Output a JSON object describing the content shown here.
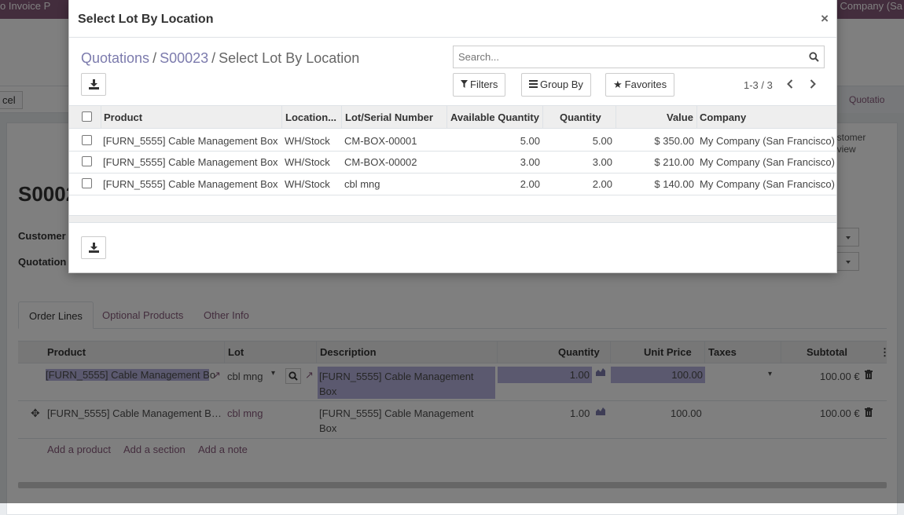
{
  "background": {
    "navbar": {
      "left_text": "o Invoice   P",
      "right_text": "Company (Sa"
    },
    "statusbar": {
      "cancel_label": "cel",
      "quotation_tab": "Quotatio"
    },
    "smart_button": {
      "line1": "ustomer",
      "line2": "eview"
    },
    "record_title": "S0002",
    "fields": {
      "customer_label": "Customer",
      "quotation_label": "Quotation"
    },
    "tabs": [
      "Order Lines",
      "Optional Products",
      "Other Info"
    ],
    "order_lines": {
      "headers": {
        "product": "Product",
        "lot": "Lot",
        "description": "Description",
        "quantity": "Quantity",
        "unit_price": "Unit Price",
        "taxes": "Taxes",
        "subtotal": "Subtotal"
      },
      "rows": [
        {
          "product": "[FURN_5555] Cable Management Bo",
          "lot": "cbl mng",
          "description_line1": "[FURN_5555] Cable Management",
          "description_line2": "Box",
          "quantity": "1.00",
          "unit_price": "100.00",
          "subtotal": "100.00 €"
        },
        {
          "product": "[FURN_5555] Cable Management B…",
          "lot": "cbl mng",
          "description_line1": "[FURN_5555] Cable Management",
          "description_line2": "Box",
          "quantity": "1.00",
          "unit_price": "100.00",
          "subtotal": "100.00 €"
        }
      ],
      "add_product": "Add a product",
      "add_section": "Add a section",
      "add_note": "Add a note"
    }
  },
  "modal": {
    "title": "Select Lot By Location",
    "close_symbol": "×",
    "breadcrumb": {
      "item1": "Quotations",
      "item2": "S00023",
      "current": "Select Lot By Location",
      "separator": "/"
    },
    "search": {
      "placeholder": "Search..."
    },
    "filters_label": "Filters",
    "group_by_label": "Group By",
    "favorites_label": "Favorites",
    "pager": "1-3 / 3",
    "columns": {
      "product": "Product",
      "location": "Location...",
      "lot": "Lot/Serial Number",
      "available": "Available Quantity",
      "quantity": "Quantity",
      "value": "Value",
      "company": "Company"
    },
    "rows": [
      {
        "product": "[FURN_5555] Cable Management Box",
        "location": "WH/Stock",
        "lot": "CM-BOX-00001",
        "available": "5.00",
        "quantity": "5.00",
        "value": "$ 350.00",
        "company": "My Company (San Francisco)"
      },
      {
        "product": "[FURN_5555] Cable Management Box",
        "location": "WH/Stock",
        "lot": "CM-BOX-00002",
        "available": "3.00",
        "quantity": "3.00",
        "value": "$ 210.00",
        "company": "My Company (San Francisco)"
      },
      {
        "product": "[FURN_5555] Cable Management Box",
        "location": "WH/Stock",
        "lot": "cbl mng",
        "available": "2.00",
        "quantity": "2.00",
        "value": "$ 140.00",
        "company": "My Company (San Francisco)"
      }
    ]
  }
}
